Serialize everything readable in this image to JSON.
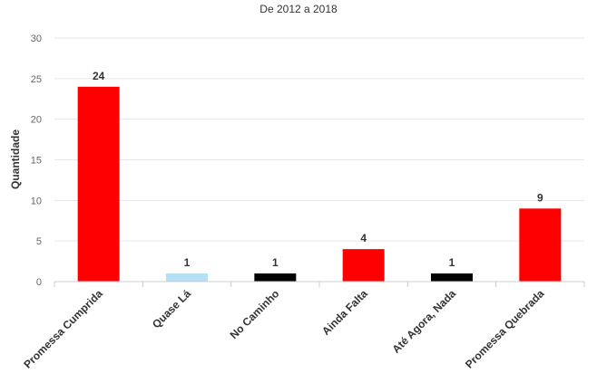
{
  "chart_data": {
    "type": "bar",
    "subtitle": "De 2012 a 2018",
    "ylabel": "Quantidade",
    "ylim": [
      0,
      30
    ],
    "yticks": [
      0,
      5,
      10,
      15,
      20,
      25,
      30
    ],
    "grid": true,
    "categories": [
      "Promessa Cumprida",
      "Quase Lá",
      "No Caminho",
      "Ainda Falta",
      "Até Agora, Nada",
      "Promessa Quebrada"
    ],
    "values": [
      24,
      1,
      1,
      4,
      1,
      9
    ],
    "colors": [
      "#ff0000",
      "#b3e0f5",
      "#000000",
      "#ff0000",
      "#000000",
      "#ff0000"
    ]
  }
}
